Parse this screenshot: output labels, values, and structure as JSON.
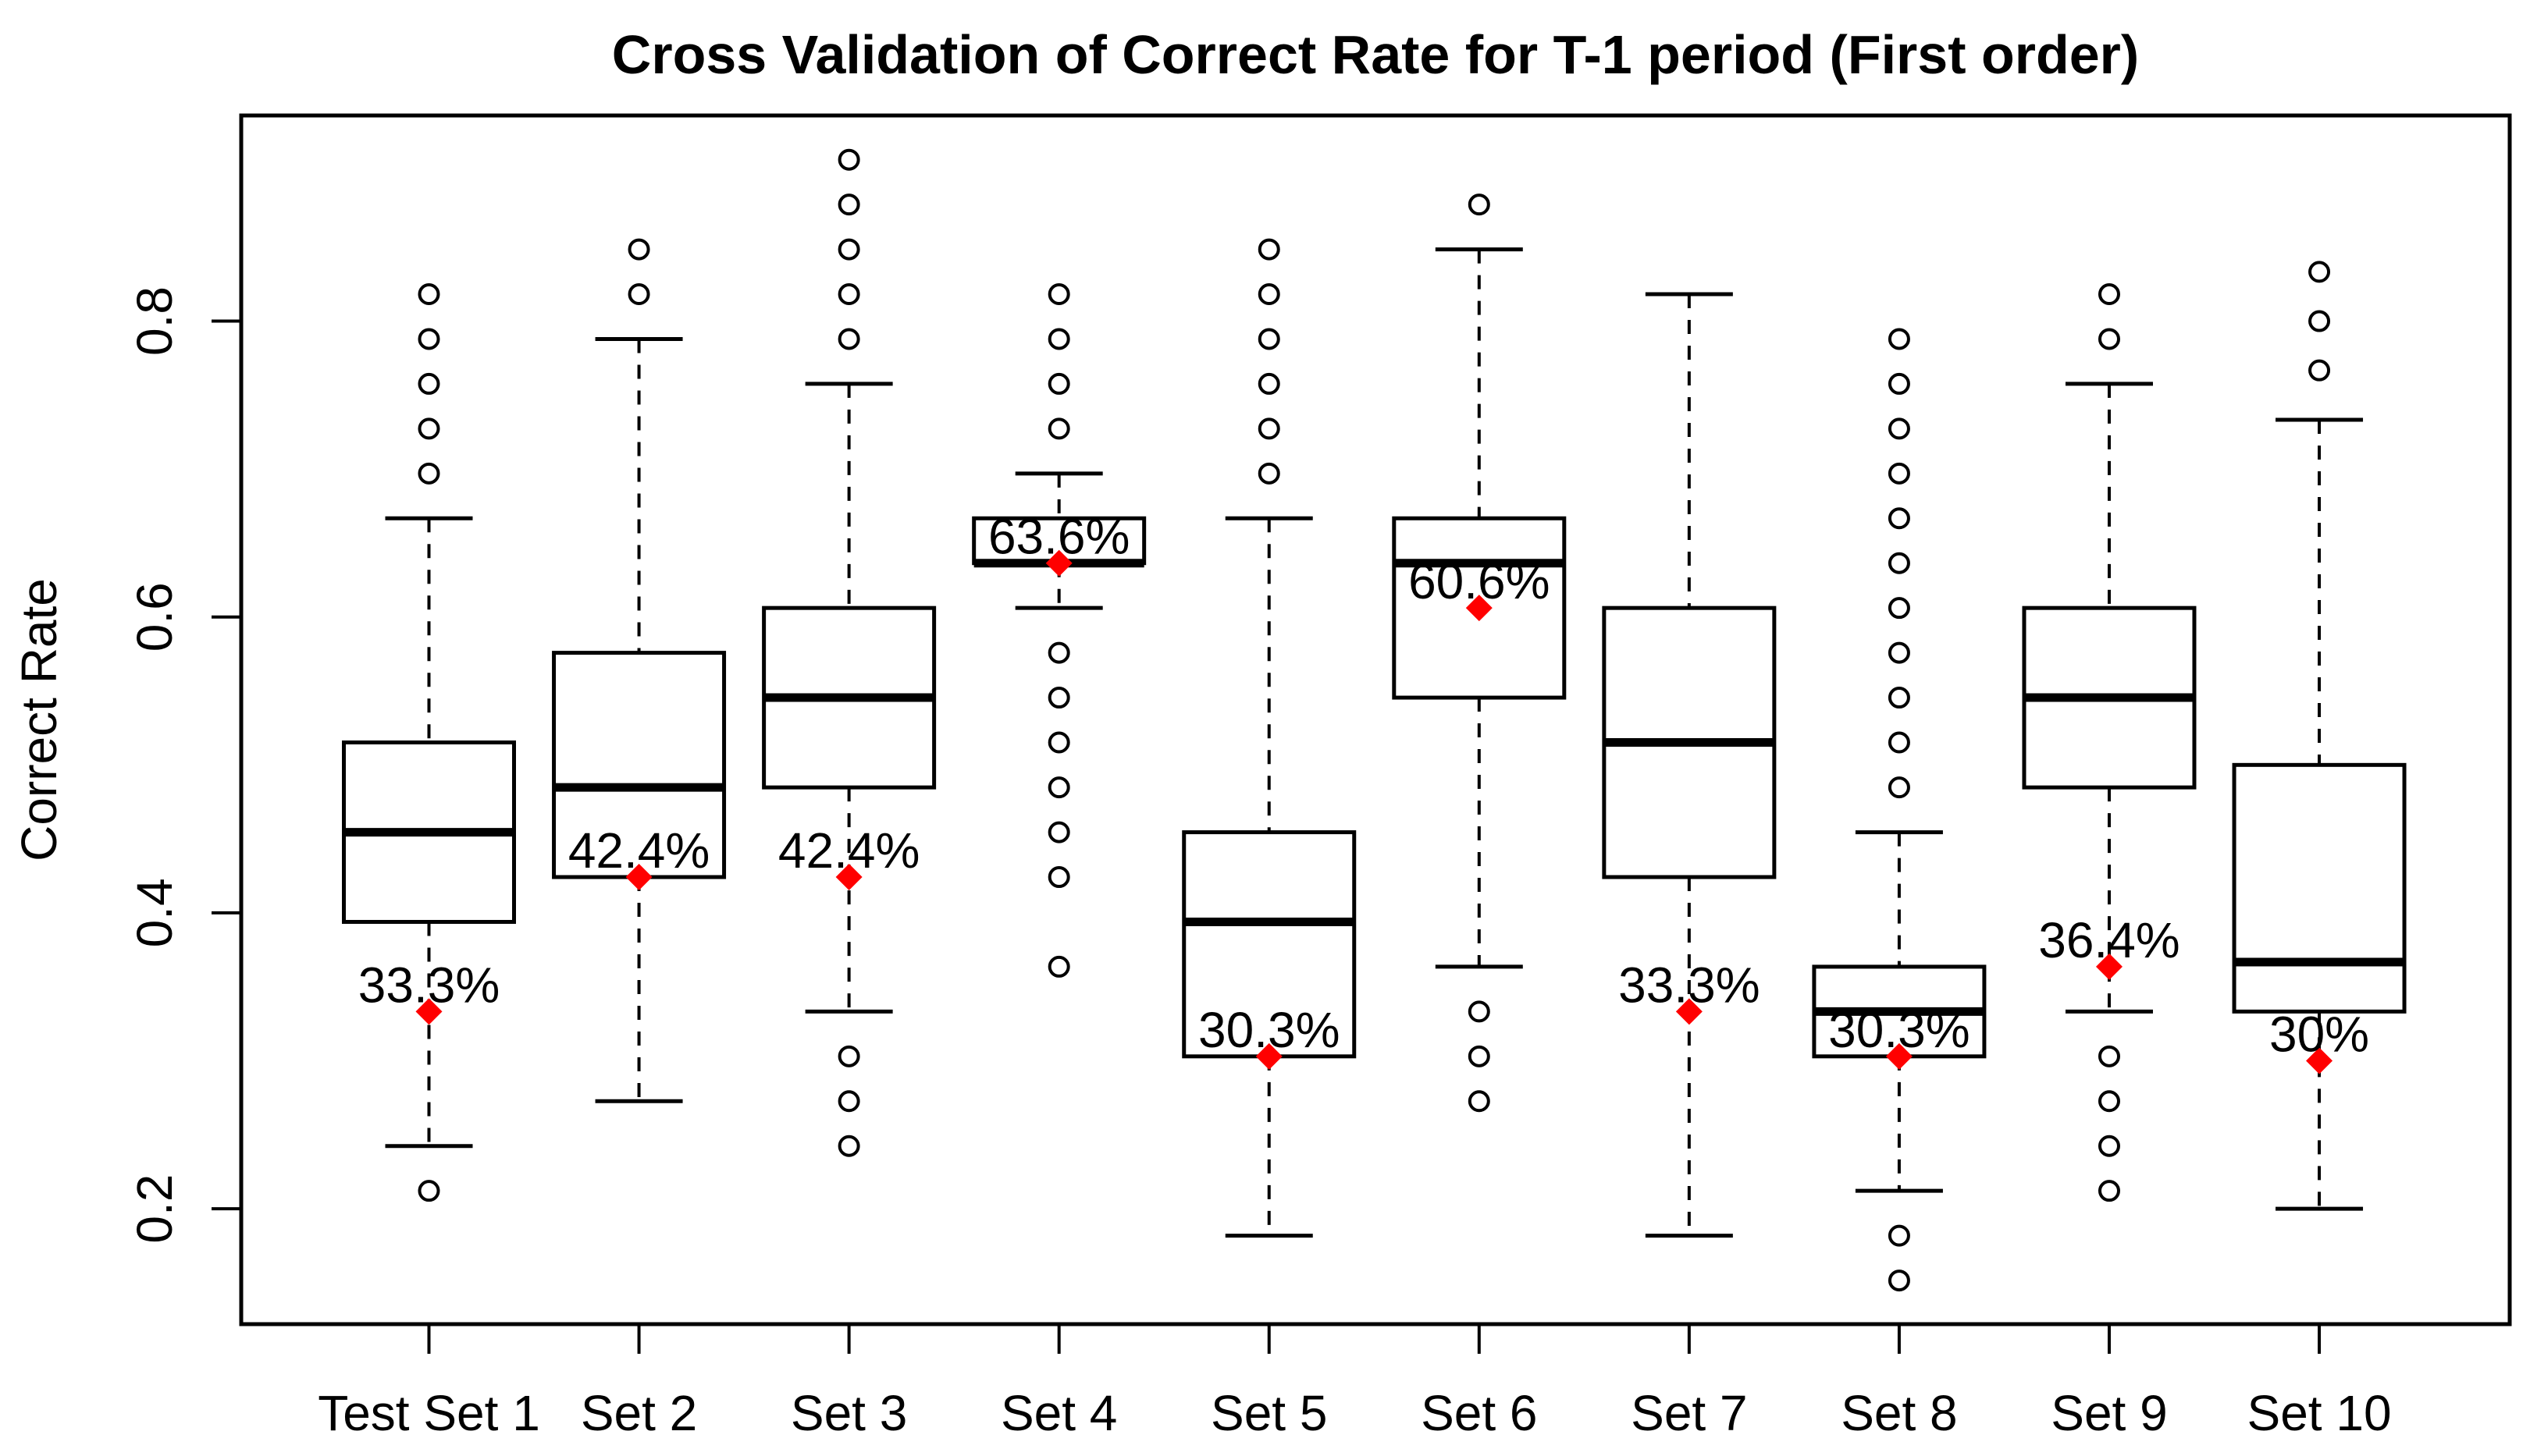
{
  "chart_data": {
    "type": "boxplot",
    "title": "Cross Validation of Correct Rate for T-1 period (First order)",
    "ylabel": "Correct Rate",
    "xlabel": "",
    "ylim": [
      0.122,
      0.939
    ],
    "grid": false,
    "legend": "none",
    "y_ticks": [
      {
        "value": 0.2,
        "label": "0.2"
      },
      {
        "value": 0.4,
        "label": "0.4"
      },
      {
        "value": 0.6,
        "label": "0.6"
      },
      {
        "value": 0.8,
        "label": "0.8"
      }
    ],
    "colors": {
      "line": "#000000",
      "box_fill": "#ffffff",
      "marker": "#ff0000",
      "background": "#ffffff"
    },
    "categories": [
      "Test Set 1",
      "Set 2",
      "Set 3",
      "Set 4",
      "Set 5",
      "Set 6",
      "Set 7",
      "Set 8",
      "Set 9",
      "Set 10"
    ],
    "boxes": [
      {
        "label": "Test Set 1",
        "whisker_low": 0.2424,
        "q1": 0.3939,
        "median": 0.4545,
        "q3": 0.5152,
        "whisker_high": 0.6667,
        "outliers_low": [
          0.2121
        ],
        "outliers_high": [
          0.697,
          0.7273,
          0.7576,
          0.7879,
          0.8182
        ],
        "marker_value": 0.3333,
        "marker_label": "33.3%"
      },
      {
        "label": "Set 2",
        "whisker_low": 0.2727,
        "q1": 0.4242,
        "median": 0.4848,
        "q3": 0.5758,
        "whisker_high": 0.7879,
        "outliers_low": [],
        "outliers_high": [
          0.8182,
          0.8485
        ],
        "marker_value": 0.4242,
        "marker_label": "42.4%"
      },
      {
        "label": "Set 3",
        "whisker_low": 0.3333,
        "q1": 0.4848,
        "median": 0.5455,
        "q3": 0.6061,
        "whisker_high": 0.7576,
        "outliers_low": [
          0.303,
          0.2727,
          0.2424
        ],
        "outliers_high": [
          0.7879,
          0.8182,
          0.8485,
          0.8788,
          0.9091
        ],
        "marker_value": 0.4242,
        "marker_label": "42.4%"
      },
      {
        "label": "Set 4",
        "whisker_low": 0.6061,
        "q1": 0.6364,
        "median": 0.6364,
        "q3": 0.6667,
        "whisker_high": 0.697,
        "outliers_low": [
          0.5758,
          0.5455,
          0.5152,
          0.4848,
          0.4545,
          0.4242,
          0.3636
        ],
        "outliers_high": [
          0.7273,
          0.7576,
          0.7879,
          0.8182
        ],
        "marker_value": 0.6364,
        "marker_label": "63.6%"
      },
      {
        "label": "Set 5",
        "whisker_low": 0.1818,
        "q1": 0.303,
        "median": 0.3939,
        "q3": 0.4545,
        "whisker_high": 0.6667,
        "outliers_low": [],
        "outliers_high": [
          0.697,
          0.7273,
          0.7576,
          0.7879,
          0.8182,
          0.8485
        ],
        "marker_value": 0.303,
        "marker_label": "30.3%"
      },
      {
        "label": "Set 6",
        "whisker_low": 0.3636,
        "q1": 0.5455,
        "median": 0.6364,
        "q3": 0.6667,
        "whisker_high": 0.8485,
        "outliers_low": [
          0.3333,
          0.303,
          0.2727
        ],
        "outliers_high": [
          0.8788
        ],
        "marker_value": 0.6061,
        "marker_label": "60.6%"
      },
      {
        "label": "Set 7",
        "whisker_low": 0.1818,
        "q1": 0.4242,
        "median": 0.5152,
        "q3": 0.6061,
        "whisker_high": 0.8182,
        "outliers_low": [],
        "outliers_high": [],
        "marker_value": 0.3333,
        "marker_label": "33.3%"
      },
      {
        "label": "Set 8",
        "whisker_low": 0.2121,
        "q1": 0.303,
        "median": 0.3333,
        "q3": 0.3636,
        "whisker_high": 0.4545,
        "outliers_low": [
          0.1818,
          0.1515
        ],
        "outliers_high": [
          0.4848,
          0.5152,
          0.5455,
          0.5758,
          0.6061,
          0.6364,
          0.6667,
          0.697,
          0.7273,
          0.7576,
          0.7879
        ],
        "marker_value": 0.303,
        "marker_label": "30.3%"
      },
      {
        "label": "Set 9",
        "whisker_low": 0.3333,
        "q1": 0.4848,
        "median": 0.5455,
        "q3": 0.6061,
        "whisker_high": 0.7576,
        "outliers_low": [
          0.303,
          0.2727,
          0.2424,
          0.2121
        ],
        "outliers_high": [
          0.7879,
          0.8182
        ],
        "marker_value": 0.3636,
        "marker_label": "36.4%"
      },
      {
        "label": "Set 10",
        "whisker_low": 0.2,
        "q1": 0.3333,
        "median": 0.3667,
        "q3": 0.5,
        "whisker_high": 0.7333,
        "outliers_low": [],
        "outliers_high": [
          0.7667,
          0.8,
          0.8333
        ],
        "marker_value": 0.3,
        "marker_label": "30%"
      }
    ]
  }
}
